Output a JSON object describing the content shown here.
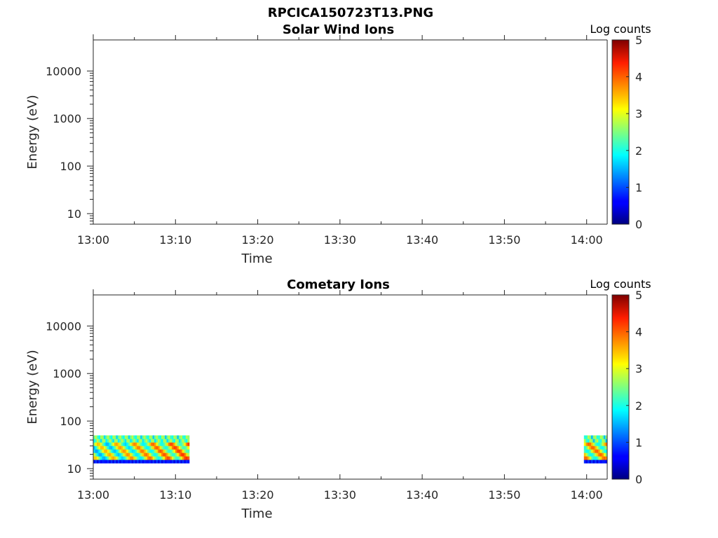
{
  "figure_title": "RPCICA150723T13.PNG",
  "chart_data": [
    {
      "type": "heatmap",
      "title": "Solar Wind Ions",
      "xlabel": "Time",
      "ylabel": "Energy (eV)",
      "x_scale": "time",
      "xlim": [
        "13:00",
        "14:02:30"
      ],
      "x_ticks": [
        "13:00",
        "13:10",
        "13:20",
        "13:30",
        "13:40",
        "13:50",
        "14:00"
      ],
      "y_scale": "log",
      "ylim": [
        6,
        45000
      ],
      "y_ticks": [
        "10",
        "100",
        "1000",
        "10000"
      ],
      "colorbar": {
        "label": "Log counts",
        "range": [
          0,
          5
        ],
        "ticks": [
          "0",
          "1",
          "2",
          "3",
          "4",
          "5"
        ],
        "colormap": "jet"
      },
      "blocks": []
    },
    {
      "type": "heatmap",
      "title": "Cometary Ions",
      "xlabel": "Time",
      "ylabel": "Energy (eV)",
      "x_scale": "time",
      "xlim": [
        "13:00",
        "14:02:30"
      ],
      "x_ticks": [
        "13:00",
        "13:10",
        "13:20",
        "13:30",
        "13:40",
        "13:50",
        "14:00"
      ],
      "y_scale": "log",
      "ylim": [
        6,
        45000
      ],
      "y_ticks": [
        "10",
        "100",
        "1000",
        "10000"
      ],
      "colorbar": {
        "label": "Log counts",
        "range": [
          0,
          5
        ],
        "ticks": [
          "0",
          "1",
          "2",
          "3",
          "4",
          "5"
        ],
        "colormap": "jet"
      },
      "blocks": [
        {
          "t_start": "13:00",
          "t_end": "13:11:40",
          "energy_range_eV": [
            13,
            50
          ],
          "log_counts_range": [
            0.5,
            4.2
          ]
        },
        {
          "t_start": "13:59:40",
          "t_end": "14:02:30",
          "energy_range_eV": [
            13,
            50
          ],
          "log_counts_range": [
            0.5,
            4.2
          ]
        }
      ]
    }
  ]
}
